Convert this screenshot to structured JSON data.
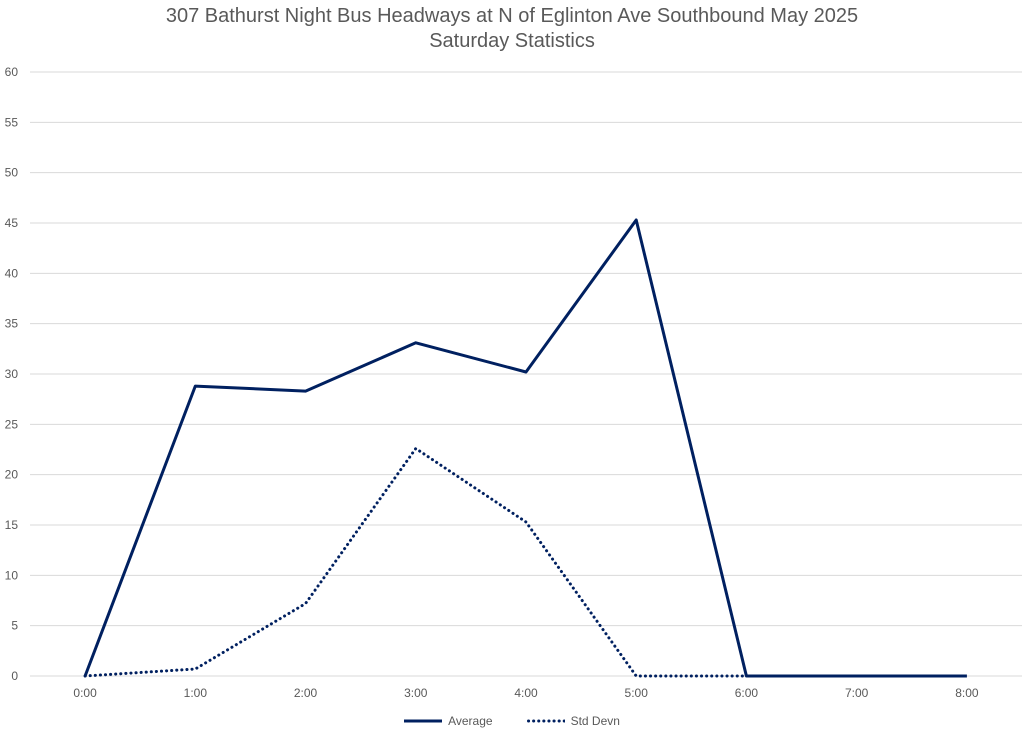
{
  "chart_data": {
    "type": "line",
    "title": "307 Bathurst Night Bus Headways at N of Eglinton Ave Southbound May 2025",
    "subtitle": "Saturday Statistics",
    "xlabel": "",
    "ylabel": "",
    "categories": [
      "0:00",
      "1:00",
      "2:00",
      "3:00",
      "4:00",
      "5:00",
      "6:00",
      "7:00",
      "8:00"
    ],
    "ylim": [
      0,
      60
    ],
    "yticks": [
      "0",
      "5",
      "10",
      "15",
      "20",
      "25",
      "30",
      "35",
      "40",
      "45",
      "50",
      "55",
      "60"
    ],
    "grid": true,
    "legend_position": "bottom",
    "series": [
      {
        "name": "Average",
        "style": "solid",
        "color": "#002060",
        "values": [
          0,
          28.8,
          28.3,
          33.1,
          30.2,
          45.3,
          0,
          0,
          0
        ]
      },
      {
        "name": "Std Devn",
        "style": "dotted",
        "color": "#002060",
        "values": [
          0,
          0.7,
          7.2,
          22.6,
          15.3,
          0,
          0,
          null,
          null
        ]
      }
    ]
  }
}
